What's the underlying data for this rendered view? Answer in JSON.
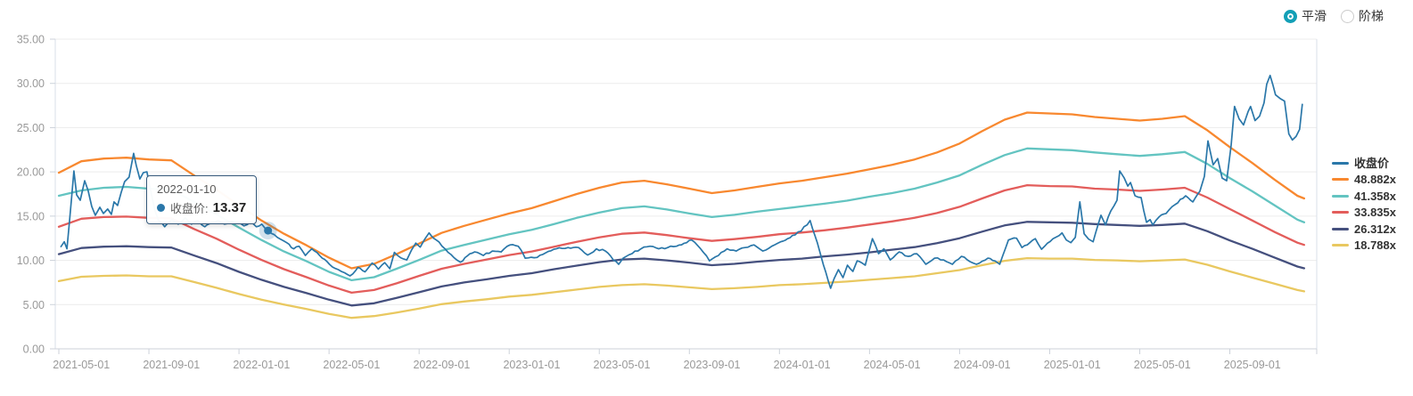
{
  "controls": {
    "smooth_label": "平滑",
    "step_label": "阶梯",
    "selected": "平滑",
    "radio_on_color": "#129fb6",
    "radio_off_border": "#cccccc"
  },
  "tooltip": {
    "date": "2022-01-10",
    "series": "收盘价",
    "label": "收盘价:",
    "value": "13.37",
    "point_t": 9.29,
    "point_value": 13.37
  },
  "chart_data": {
    "type": "line",
    "title": "",
    "xlabel": "",
    "ylabel": "",
    "x_unit": "months since 2021-04-01",
    "x_range": [
      0,
      55.3
    ],
    "ylim": [
      0,
      35
    ],
    "grid": true,
    "legend_position": "right",
    "y_axis": {
      "min": 0,
      "max": 35,
      "step": 5,
      "tick_labels": [
        "0.00",
        "5.00",
        "10.00",
        "15.00",
        "20.00",
        "25.00",
        "30.00",
        "35.00"
      ]
    },
    "x_axis": {
      "tick_labels": [
        "2021-05-01",
        "2021-09-01",
        "2022-01-01",
        "2022-05-01",
        "2022-09-01",
        "2023-01-01",
        "2023-05-01",
        "2023-09-01",
        "2024-01-01",
        "2024-05-01",
        "2024-09-01",
        "2025-01-01",
        "2025-05-01",
        "2025-09-01"
      ],
      "tick_month_positions": [
        1,
        5,
        9,
        13,
        17,
        21,
        25,
        29,
        33,
        37,
        41,
        45,
        49,
        53
      ]
    },
    "band_months": [
      0,
      1,
      2,
      3,
      4,
      5,
      6,
      7,
      8,
      9,
      10,
      11,
      12,
      13,
      14,
      15,
      16,
      17,
      18,
      19,
      20,
      21,
      22,
      23,
      24,
      25,
      26,
      27,
      28,
      29,
      30,
      31,
      32,
      33,
      34,
      35,
      36,
      37,
      38,
      39,
      40,
      41,
      42,
      43,
      44,
      45,
      46,
      47,
      48,
      49,
      50,
      51,
      52,
      53,
      54,
      55,
      55.3
    ],
    "series": [
      {
        "name": "收盘价",
        "color": "#2a77a9",
        "kind": "price",
        "points": [
          [
            0.08,
            11.5
          ],
          [
            0.24,
            12.1
          ],
          [
            0.36,
            11.3
          ],
          [
            0.67,
            20.1
          ],
          [
            0.79,
            17.4
          ],
          [
            0.95,
            16.8
          ],
          [
            1.15,
            19.0
          ],
          [
            1.3,
            17.9
          ],
          [
            1.46,
            16.1
          ],
          [
            1.62,
            15.1
          ],
          [
            1.82,
            16.0
          ],
          [
            1.98,
            15.3
          ],
          [
            2.17,
            15.8
          ],
          [
            2.33,
            15.2
          ],
          [
            2.45,
            16.6
          ],
          [
            2.61,
            16.2
          ],
          [
            2.77,
            17.7
          ],
          [
            2.92,
            18.9
          ],
          [
            3.12,
            19.4
          ],
          [
            3.32,
            22.1
          ],
          [
            3.44,
            20.7
          ],
          [
            3.6,
            19.2
          ],
          [
            3.75,
            19.9
          ],
          [
            3.91,
            20.0
          ],
          [
            4.11,
            17.5
          ],
          [
            4.27,
            15.6
          ],
          [
            4.43,
            14.5
          ],
          [
            4.7,
            13.8
          ],
          [
            5.02,
            14.6
          ],
          [
            5.3,
            14.1
          ],
          [
            5.61,
            14.8
          ],
          [
            5.89,
            14.1
          ],
          [
            6.17,
            14.5
          ],
          [
            6.48,
            13.8
          ],
          [
            6.8,
            14.3
          ],
          [
            7.08,
            14.5
          ],
          [
            7.35,
            14.1
          ],
          [
            7.67,
            14.4
          ],
          [
            7.94,
            14.2
          ],
          [
            8.22,
            13.9
          ],
          [
            8.5,
            14.3
          ],
          [
            8.77,
            13.8
          ],
          [
            9.01,
            14.1
          ],
          [
            9.29,
            13.37
          ],
          [
            9.57,
            12.9
          ],
          [
            9.84,
            12.4
          ],
          [
            10.12,
            12.0
          ],
          [
            10.43,
            11.3
          ],
          [
            10.67,
            11.6
          ],
          [
            10.95,
            10.55
          ],
          [
            11.23,
            11.3
          ],
          [
            11.7,
            10.25
          ],
          [
            12.02,
            9.55
          ],
          [
            12.41,
            8.95
          ],
          [
            12.69,
            8.6
          ],
          [
            12.93,
            8.25
          ],
          [
            13.28,
            9.2
          ],
          [
            13.6,
            8.7
          ],
          [
            13.91,
            9.7
          ],
          [
            14.19,
            9.0
          ],
          [
            14.47,
            9.75
          ],
          [
            14.7,
            9.05
          ],
          [
            14.9,
            10.9
          ],
          [
            15.18,
            10.3
          ],
          [
            15.45,
            10.05
          ],
          [
            15.65,
            11.1
          ],
          [
            15.85,
            11.95
          ],
          [
            16.05,
            11.5
          ],
          [
            16.25,
            12.4
          ],
          [
            16.44,
            13.1
          ],
          [
            16.76,
            12.3
          ],
          [
            17.15,
            11.3
          ],
          [
            17.55,
            10.3
          ],
          [
            17.83,
            9.8
          ],
          [
            18.14,
            10.5
          ],
          [
            18.46,
            10.95
          ],
          [
            18.85,
            10.55
          ],
          [
            19.25,
            11.05
          ],
          [
            19.64,
            10.95
          ],
          [
            20.04,
            11.75
          ],
          [
            20.4,
            11.6
          ],
          [
            20.71,
            10.25
          ],
          [
            21.11,
            10.3
          ],
          [
            21.62,
            10.85
          ],
          [
            22.09,
            11.3
          ],
          [
            22.49,
            11.35
          ],
          [
            23.08,
            11.45
          ],
          [
            23.48,
            10.6
          ],
          [
            23.87,
            11.3
          ],
          [
            24.27,
            11.05
          ],
          [
            24.86,
            9.55
          ],
          [
            25.06,
            10.25
          ],
          [
            25.45,
            10.75
          ],
          [
            25.85,
            11.3
          ],
          [
            26.25,
            11.6
          ],
          [
            26.64,
            11.3
          ],
          [
            27.04,
            11.45
          ],
          [
            27.43,
            11.6
          ],
          [
            28.1,
            12.3
          ],
          [
            28.5,
            11.3
          ],
          [
            28.89,
            9.95
          ],
          [
            29.29,
            10.55
          ],
          [
            29.68,
            11.3
          ],
          [
            30.08,
            11.05
          ],
          [
            30.47,
            11.45
          ],
          [
            30.87,
            11.75
          ],
          [
            31.26,
            11.05
          ],
          [
            31.66,
            11.6
          ],
          [
            32.05,
            12.1
          ],
          [
            32.57,
            12.8
          ],
          [
            32.96,
            13.3
          ],
          [
            33.36,
            14.5
          ],
          [
            33.68,
            12.0
          ],
          [
            33.95,
            9.5
          ],
          [
            34.27,
            6.85
          ],
          [
            34.43,
            7.95
          ],
          [
            34.62,
            8.95
          ],
          [
            34.82,
            8.05
          ],
          [
            35.02,
            9.45
          ],
          [
            35.26,
            8.75
          ],
          [
            35.45,
            9.95
          ],
          [
            35.81,
            9.45
          ],
          [
            36.13,
            12.45
          ],
          [
            36.4,
            10.75
          ],
          [
            36.64,
            11.3
          ],
          [
            36.92,
            10.05
          ],
          [
            37.31,
            10.95
          ],
          [
            37.71,
            10.45
          ],
          [
            38.1,
            10.75
          ],
          [
            38.5,
            9.55
          ],
          [
            38.89,
            10.25
          ],
          [
            39.29,
            10.05
          ],
          [
            39.68,
            9.55
          ],
          [
            40.08,
            10.45
          ],
          [
            40.47,
            9.85
          ],
          [
            40.75,
            9.55
          ],
          [
            41.26,
            10.25
          ],
          [
            41.78,
            9.55
          ],
          [
            42.17,
            12.3
          ],
          [
            42.53,
            12.5
          ],
          [
            42.77,
            11.45
          ],
          [
            43.12,
            12.0
          ],
          [
            43.36,
            12.45
          ],
          [
            43.64,
            11.25
          ],
          [
            44.15,
            12.45
          ],
          [
            44.55,
            13.1
          ],
          [
            44.74,
            12.3
          ],
          [
            44.94,
            12.0
          ],
          [
            45.14,
            12.6
          ],
          [
            45.34,
            16.6
          ],
          [
            45.53,
            13.0
          ],
          [
            45.73,
            12.4
          ],
          [
            45.93,
            12.1
          ],
          [
            46.28,
            15.1
          ],
          [
            46.48,
            14.0
          ],
          [
            46.72,
            15.6
          ],
          [
            46.99,
            16.8
          ],
          [
            47.11,
            20.1
          ],
          [
            47.31,
            19.3
          ],
          [
            47.47,
            18.4
          ],
          [
            47.59,
            18.8
          ],
          [
            47.79,
            17.3
          ],
          [
            48.06,
            17.1
          ],
          [
            48.3,
            14.3
          ],
          [
            48.46,
            14.6
          ],
          [
            48.58,
            14.0
          ],
          [
            48.85,
            14.9
          ],
          [
            49.17,
            15.3
          ],
          [
            49.57,
            16.3
          ],
          [
            50.04,
            17.3
          ],
          [
            50.36,
            16.6
          ],
          [
            50.67,
            17.8
          ],
          [
            50.87,
            19.5
          ],
          [
            51.03,
            23.5
          ],
          [
            51.26,
            20.8
          ],
          [
            51.46,
            21.5
          ],
          [
            51.66,
            19.3
          ],
          [
            51.86,
            19.0
          ],
          [
            52.06,
            23.0
          ],
          [
            52.21,
            27.4
          ],
          [
            52.41,
            26.0
          ],
          [
            52.61,
            25.3
          ],
          [
            52.81,
            26.8
          ],
          [
            52.92,
            27.4
          ],
          [
            53.12,
            25.8
          ],
          [
            53.32,
            26.3
          ],
          [
            53.52,
            27.8
          ],
          [
            53.64,
            29.9
          ],
          [
            53.79,
            30.9
          ],
          [
            54.03,
            28.7
          ],
          [
            54.23,
            28.3
          ],
          [
            54.43,
            28.0
          ],
          [
            54.62,
            24.3
          ],
          [
            54.78,
            23.6
          ],
          [
            54.94,
            24.0
          ],
          [
            55.1,
            24.8
          ],
          [
            55.22,
            27.7
          ]
        ]
      },
      {
        "name": "48.882x",
        "color": "#f8882f",
        "kind": "band",
        "values": [
          19.9,
          21.2,
          21.5,
          21.6,
          21.4,
          21.3,
          19.6,
          18.0,
          16.2,
          14.5,
          13.0,
          11.7,
          10.3,
          9.1,
          9.6,
          10.7,
          11.9,
          13.1,
          13.9,
          14.6,
          15.3,
          15.9,
          16.7,
          17.5,
          18.2,
          18.8,
          19.0,
          18.6,
          18.1,
          17.6,
          17.9,
          18.3,
          18.7,
          19.0,
          19.4,
          19.8,
          20.3,
          20.8,
          21.4,
          22.2,
          23.2,
          24.6,
          25.9,
          26.7,
          26.6,
          26.5,
          26.2,
          26.0,
          25.8,
          26.0,
          26.3,
          24.7,
          22.8,
          21.0,
          19.1,
          17.3,
          17.0
        ]
      },
      {
        "name": "41.358x",
        "color": "#63c4c1",
        "kind": "band",
        "values": [
          17.3,
          17.9,
          18.2,
          18.3,
          18.1,
          18.0,
          16.6,
          15.2,
          13.7,
          12.3,
          11.0,
          9.9,
          8.7,
          7.75,
          8.1,
          9.05,
          10.05,
          11.1,
          11.75,
          12.35,
          12.95,
          13.45,
          14.1,
          14.8,
          15.4,
          15.9,
          16.1,
          15.75,
          15.3,
          14.9,
          15.15,
          15.5,
          15.8,
          16.1,
          16.4,
          16.75,
          17.2,
          17.6,
          18.1,
          18.8,
          19.6,
          20.8,
          21.9,
          22.65,
          22.55,
          22.45,
          22.2,
          22.0,
          21.8,
          22.0,
          22.25,
          20.9,
          19.3,
          17.8,
          16.2,
          14.6,
          14.3
        ]
      },
      {
        "name": "33.835x",
        "color": "#e35d5b",
        "kind": "band",
        "values": [
          13.8,
          14.7,
          14.9,
          14.95,
          14.8,
          14.75,
          13.55,
          12.45,
          11.2,
          10.05,
          9.0,
          8.1,
          7.15,
          6.35,
          6.65,
          7.4,
          8.25,
          9.05,
          9.6,
          10.1,
          10.6,
          11.0,
          11.55,
          12.1,
          12.6,
          13.0,
          13.15,
          12.85,
          12.5,
          12.2,
          12.4,
          12.65,
          12.95,
          13.15,
          13.4,
          13.7,
          14.05,
          14.4,
          14.8,
          15.35,
          16.05,
          17.0,
          17.9,
          18.5,
          18.4,
          18.35,
          18.1,
          18.0,
          17.85,
          18.0,
          18.2,
          17.1,
          15.8,
          14.5,
          13.2,
          12.0,
          11.75
        ]
      },
      {
        "name": "26.312x",
        "color": "#45507e",
        "kind": "band",
        "values": [
          10.7,
          11.4,
          11.55,
          11.6,
          11.5,
          11.45,
          10.55,
          9.7,
          8.7,
          7.8,
          7.0,
          6.3,
          5.55,
          4.9,
          5.15,
          5.75,
          6.4,
          7.05,
          7.5,
          7.85,
          8.25,
          8.55,
          9.0,
          9.4,
          9.8,
          10.1,
          10.2,
          10.0,
          9.75,
          9.45,
          9.6,
          9.85,
          10.05,
          10.2,
          10.45,
          10.65,
          10.9,
          11.2,
          11.5,
          11.95,
          12.5,
          13.25,
          13.95,
          14.35,
          14.3,
          14.25,
          14.1,
          14.0,
          13.9,
          14.0,
          14.15,
          13.3,
          12.25,
          11.3,
          10.3,
          9.3,
          9.1
        ]
      },
      {
        "name": "18.788x",
        "color": "#e9c860",
        "kind": "band",
        "values": [
          7.65,
          8.15,
          8.25,
          8.3,
          8.2,
          8.2,
          7.55,
          6.9,
          6.2,
          5.55,
          5.0,
          4.5,
          3.95,
          3.5,
          3.7,
          4.1,
          4.55,
          5.05,
          5.35,
          5.6,
          5.9,
          6.1,
          6.4,
          6.7,
          7.0,
          7.2,
          7.3,
          7.15,
          6.95,
          6.75,
          6.85,
          7.0,
          7.2,
          7.3,
          7.45,
          7.6,
          7.8,
          8.0,
          8.2,
          8.55,
          8.9,
          9.45,
          9.95,
          10.25,
          10.2,
          10.2,
          10.05,
          10.0,
          9.9,
          10.0,
          10.1,
          9.5,
          8.75,
          8.05,
          7.35,
          6.65,
          6.5
        ]
      }
    ],
    "colors": {
      "grid": "#ececec",
      "plot_border": "#d9dfe8",
      "axis_line": "#ccd2da",
      "tick": "#ccd2da",
      "axis_label": "#999999",
      "highlight_halo": "rgba(42,119,169,0.22)"
    }
  }
}
